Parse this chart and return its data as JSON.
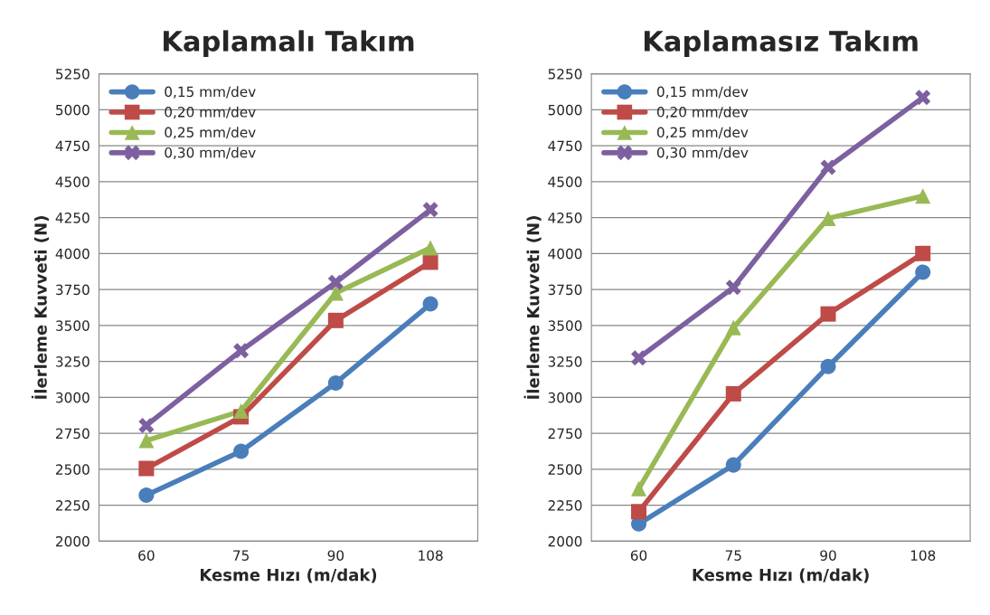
{
  "chart_data": [
    {
      "type": "line",
      "title": "Kaplamalı Takım",
      "xlabel": "Kesme Hızı (m/dak)",
      "ylabel": "İlerleme Kuvveti (N)",
      "categories": [
        "60",
        "75",
        "90",
        "108"
      ],
      "ylim": [
        2000,
        5250
      ],
      "yticks": [
        2000,
        2250,
        2500,
        2750,
        3000,
        3250,
        3500,
        3750,
        4000,
        4250,
        4500,
        4750,
        5000,
        5250
      ],
      "grid": "y",
      "legend": "top left",
      "series": [
        {
          "name": "0,15 mm/dev",
          "color": "#4a7ebb",
          "marker": "circle",
          "values": [
            2320,
            2625,
            3100,
            3650
          ]
        },
        {
          "name": "0,20 mm/dev",
          "color": "#be4b48",
          "marker": "square",
          "values": [
            2505,
            2865,
            3535,
            3940
          ]
        },
        {
          "name": "0,25 mm/dev",
          "color": "#98b954",
          "marker": "triangle",
          "values": [
            2700,
            2905,
            3725,
            4040
          ]
        },
        {
          "name": "0,30 mm/dev",
          "color": "#7d60a0",
          "marker": "cross",
          "values": [
            2805,
            3325,
            3800,
            4305
          ]
        }
      ]
    },
    {
      "type": "line",
      "title": "Kaplamasız Takım",
      "xlabel": "Kesme Hızı (m/dak)",
      "ylabel": "İlerleme Kuvveti (N)",
      "categories": [
        "60",
        "75",
        "90",
        "108"
      ],
      "ylim": [
        2000,
        5250
      ],
      "yticks": [
        2000,
        2250,
        2500,
        2750,
        3000,
        3250,
        3500,
        3750,
        4000,
        4250,
        4500,
        4750,
        5000,
        5250
      ],
      "grid": "y",
      "legend": "top left",
      "series": [
        {
          "name": "0,15 mm/dev",
          "color": "#4a7ebb",
          "marker": "circle",
          "values": [
            2120,
            2530,
            3215,
            3870
          ]
        },
        {
          "name": "0,20 mm/dev",
          "color": "#be4b48",
          "marker": "square",
          "values": [
            2205,
            3025,
            3580,
            4000
          ]
        },
        {
          "name": "0,25 mm/dev",
          "color": "#98b954",
          "marker": "triangle",
          "values": [
            2365,
            3485,
            4245,
            4400
          ]
        },
        {
          "name": "0,30 mm/dev",
          "color": "#7d60a0",
          "marker": "cross",
          "values": [
            3275,
            3765,
            4600,
            5085
          ]
        }
      ]
    }
  ]
}
